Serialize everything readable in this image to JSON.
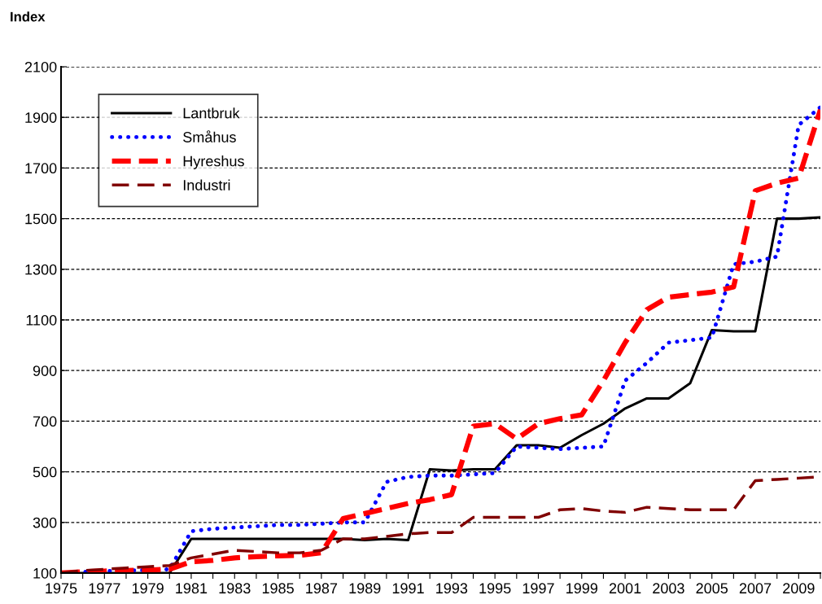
{
  "chart_data": {
    "type": "line",
    "ylabel": "Index",
    "x": [
      1975,
      1976,
      1977,
      1978,
      1979,
      1980,
      1981,
      1982,
      1983,
      1984,
      1985,
      1986,
      1987,
      1988,
      1989,
      1990,
      1991,
      1992,
      1993,
      1994,
      1995,
      1996,
      1997,
      1998,
      1999,
      2000,
      2001,
      2002,
      2003,
      2004,
      2005,
      2006,
      2007,
      2008,
      2009,
      2010
    ],
    "series": [
      {
        "name": "Lantbruk",
        "color": "#000000",
        "line_style": "solid",
        "values": [
          100,
          100,
          100,
          100,
          100,
          100,
          235,
          235,
          235,
          235,
          235,
          235,
          235,
          235,
          230,
          235,
          230,
          510,
          505,
          510,
          510,
          605,
          605,
          595,
          645,
          690,
          750,
          790,
          790,
          850,
          1060,
          1055,
          1055,
          1500,
          1500,
          1505
        ]
      },
      {
        "name": "Småhus",
        "color": "#0000ff",
        "line_style": "dotted",
        "values": [
          100,
          105,
          108,
          110,
          112,
          115,
          265,
          275,
          280,
          285,
          290,
          290,
          295,
          300,
          300,
          460,
          480,
          485,
          485,
          490,
          495,
          600,
          595,
          590,
          595,
          600,
          860,
          930,
          1010,
          1020,
          1030,
          1320,
          1330,
          1350,
          1870,
          1940
        ]
      },
      {
        "name": "Hyreshus",
        "color": "#ff0000",
        "line_style": "dashed",
        "values": [
          100,
          105,
          108,
          110,
          112,
          115,
          145,
          150,
          160,
          165,
          168,
          170,
          180,
          315,
          335,
          355,
          375,
          390,
          410,
          680,
          690,
          630,
          690,
          710,
          725,
          860,
          1010,
          1140,
          1190,
          1200,
          1210,
          1230,
          1610,
          1640,
          1660,
          1930
        ]
      },
      {
        "name": "Industri",
        "color": "#800000",
        "line_style": "dashed",
        "values": [
          100,
          110,
          115,
          120,
          125,
          130,
          160,
          175,
          190,
          185,
          180,
          180,
          190,
          235,
          235,
          245,
          255,
          260,
          260,
          320,
          320,
          320,
          320,
          350,
          355,
          345,
          340,
          360,
          355,
          350,
          350,
          350,
          465,
          470,
          475,
          480
        ]
      }
    ],
    "xlim": [
      1975,
      2010
    ],
    "xticks": [
      1975,
      {
        "value": 1976,
        "label": null
      },
      1977,
      {
        "value": 1978,
        "label": null
      },
      1979,
      {
        "value": 1980,
        "label": null
      },
      1981,
      {
        "value": 1982,
        "label": null
      },
      1983,
      {
        "value": 1984,
        "label": null
      },
      1985,
      {
        "value": 1986,
        "label": null
      },
      1987,
      {
        "value": 1988,
        "label": null
      },
      1989,
      {
        "value": 1990,
        "label": null
      },
      1991,
      {
        "value": 1992,
        "label": null
      },
      1993,
      {
        "value": 1994,
        "label": null
      },
      1995,
      {
        "value": 1996,
        "label": null
      },
      1997,
      {
        "value": 1998,
        "label": null
      },
      1999,
      {
        "value": 2000,
        "label": null
      },
      2001,
      {
        "value": 2002,
        "label": null
      },
      2003,
      {
        "value": 2004,
        "label": null
      },
      2005,
      {
        "value": 2006,
        "label": null
      },
      2007,
      {
        "value": 2008,
        "label": null
      },
      2009,
      {
        "value": 2010,
        "label": null
      }
    ],
    "ylim": [
      100,
      2100
    ],
    "yticks": [
      100,
      300,
      500,
      700,
      900,
      1100,
      1300,
      1500,
      1700,
      1900,
      2100
    ],
    "grid": "y",
    "legend": "top left"
  }
}
